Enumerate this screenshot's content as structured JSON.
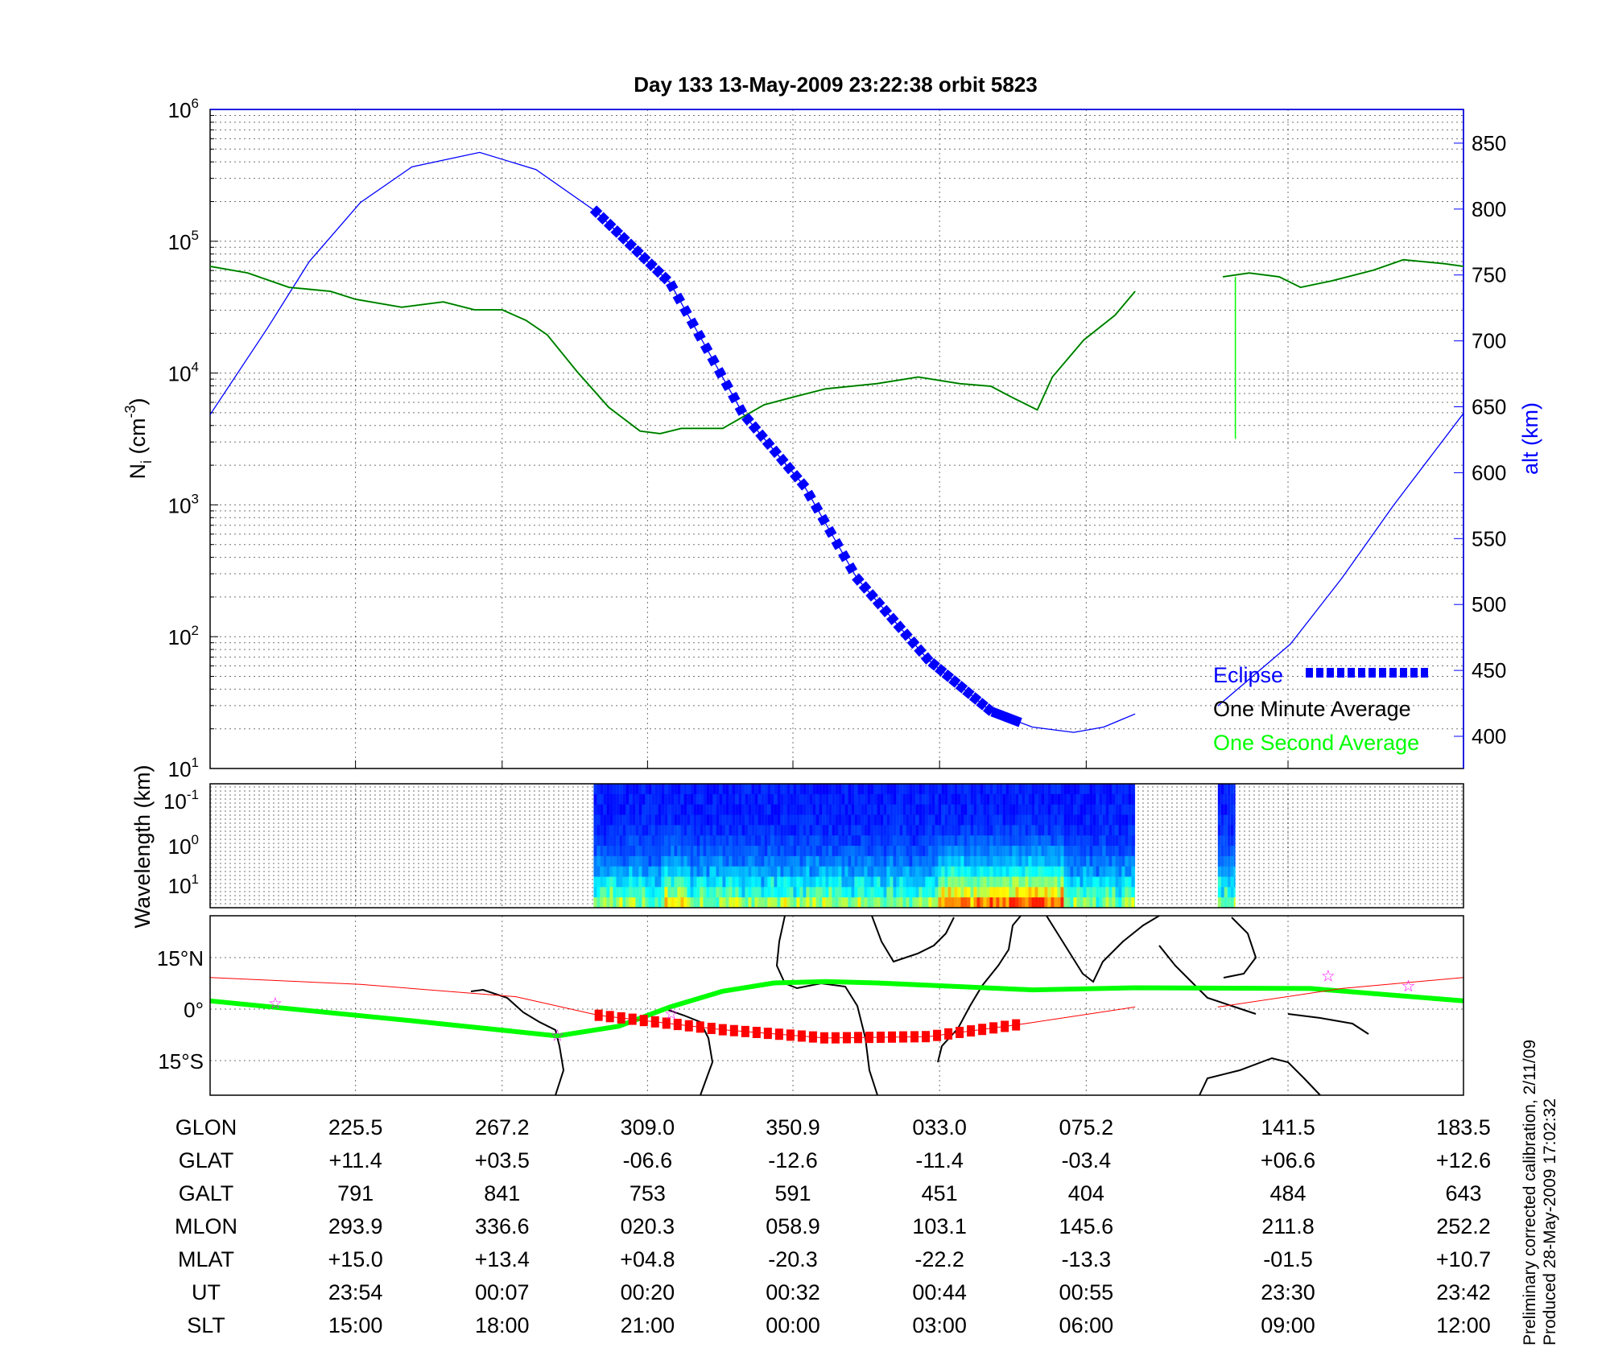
{
  "chart_data": [
    {
      "type": "line",
      "title": "Day 133  13-May-2009 23:22:38   orbit 5823",
      "xlabel": "",
      "x_units": "percent of plotted orbit segment",
      "ylabel": "N",
      "ylabel_sub": "i",
      "ylabel_unit_pre": " (cm",
      "ylabel_unit_sup": "-3",
      "ylabel_unit_post": ")",
      "yscale": "log",
      "ylim": [
        10,
        1000000
      ],
      "yticks": [
        {
          "base": "10",
          "exp": "1"
        },
        {
          "base": "10",
          "exp": "2"
        },
        {
          "base": "10",
          "exp": "3"
        },
        {
          "base": "10",
          "exp": "4"
        },
        {
          "base": "10",
          "exp": "5"
        },
        {
          "base": "10",
          "exp": "6"
        }
      ],
      "y2label": "alt (km)",
      "y2lim": [
        375,
        875
      ],
      "y2ticks": [
        "400",
        "450",
        "500",
        "550",
        "600",
        "650",
        "700",
        "750",
        "800",
        "850"
      ],
      "grid": true,
      "legend": {
        "position": "bottom-right",
        "entries": [
          {
            "label": "Eclipse",
            "color": "#0000ff"
          },
          {
            "label": "One Minute Average",
            "color": "#000000"
          },
          {
            "label": "One Second Average",
            "color": "#00ff00"
          }
        ]
      },
      "series": [
        {
          "name": "alt (km)",
          "axis": "right",
          "color": "#0000ff",
          "segments": [
            {
              "x": [
                0,
                4.6,
                7.9,
                12.0,
                16.1,
                21.5,
                26.0,
                30.8,
                36.7,
                42.5,
                47.4,
                51.6,
                57.3,
                62.3,
                65.6,
                68.9,
                71.3,
                73.8
              ],
              "y": [
                644,
                710,
                760,
                805,
                832,
                843,
                830,
                798,
                744,
                645,
                590,
                520,
                458,
                419,
                407,
                403,
                407,
                417
              ]
            },
            {
              "x": [
                80.4,
                86.2,
                90.3,
                94.4,
                100
              ],
              "y": [
                423,
                470,
                520,
                575,
                645
              ]
            }
          ]
        },
        {
          "name": "Eclipse",
          "axis": "right",
          "color": "#0000ff",
          "style": "thick-dashed",
          "x_range": [
            30.8,
            64.7
          ]
        },
        {
          "name": "One Minute Average",
          "axis": "left",
          "color": "#006400",
          "segments": [
            {
              "x": [
                0,
                3.0,
                6.3,
                9.6,
                11.6,
                15.3,
                18.6,
                21.1,
                23.3,
                25.2,
                26.9,
                29.3,
                31.8,
                34.3,
                35.9,
                37.6,
                40.9,
                44.2,
                46.6,
                49.1,
                53.2,
                56.5,
                59.8,
                62.3,
                63.9,
                66.0,
                67.2,
                69.7,
                72.2,
                73.8
              ],
              "y": [
                64500,
                57500,
                44700,
                41700,
                36300,
                31600,
                34700,
                30200,
                30200,
                25100,
                19500,
                10200,
                5500,
                3630,
                3470,
                3800,
                3800,
                5750,
                6610,
                7590,
                8320,
                9330,
                8320,
                7940,
                6610,
                5250,
                9330,
                17800,
                27500,
                41700
              ]
            },
            {
              "x": [
                80.8,
                82.9,
                85.3,
                87.0,
                89.5,
                92.8,
                95.2,
                98.5,
                100
              ],
              "y": [
                53700,
                57500,
                53700,
                44700,
                50100,
                60300,
                72400,
                67600,
                64500
              ]
            }
          ]
        },
        {
          "name": "One Second Average",
          "axis": "left",
          "color": "#00ff00",
          "spike": {
            "x": 81.8,
            "y_from": 53700,
            "y_to": 3160
          }
        }
      ]
    },
    {
      "type": "heatmap",
      "ylabel": "Wavelength (km)",
      "yticks": [
        {
          "base": "10",
          "exp": "-1"
        },
        {
          "base": "10",
          "exp": "0"
        },
        {
          "base": "10",
          "exp": "1"
        }
      ],
      "data_x_ranges": [
        [
          30.6,
          73.8
        ],
        [
          80.4,
          81.8
        ]
      ],
      "colormap": "jet"
    },
    {
      "type": "line",
      "yticks": [
        "15°N",
        "0°",
        "15°S"
      ],
      "ylim": [
        -25,
        27
      ],
      "series": [
        {
          "name": "ground track",
          "color": "#00ff00",
          "x": [
            0,
            16.1,
            27.7,
            32.6,
            36.7,
            40.9,
            45.0,
            49.1,
            53.2,
            65.6,
            73.8,
            87.8,
            100
          ],
          "y": [
            2.4,
            -3.4,
            -7.8,
            -5.0,
            0.6,
            5.2,
            7.6,
            8.0,
            7.6,
            5.6,
            6.2,
            6.0,
            2.4
          ]
        },
        {
          "name": "conjugate track",
          "color": "#ff0000",
          "segments": [
            {
              "x": [
                0,
                12.0,
                24.4,
                31.0,
                40.9,
                49.1,
                57.3,
                64.7,
                73.8
              ],
              "y": [
                9.2,
                7.2,
                3.6,
                -1.8,
                -6.0,
                -8.4,
                -8.0,
                -4.4,
                0.6
              ]
            },
            {
              "x": [
                80.4,
                90.3,
                100
              ],
              "y": [
                0.6,
                6.0,
                9.2
              ]
            }
          ]
        },
        {
          "name": "eclipse (conjugate)",
          "color": "#ff0000",
          "x_range": [
            31.0,
            64.7
          ]
        },
        {
          "name": "stars",
          "color": "#ff00ff",
          "x": [
            5.2,
            27.7,
            36.8,
            89.2,
            95.6
          ],
          "y": [
            2.0,
            -7.4,
            -1.0,
            10.0,
            7.0
          ]
        }
      ]
    }
  ],
  "table": {
    "rows": [
      {
        "label": "GLON",
        "values": [
          "225.5",
          "267.2",
          "309.0",
          "350.9",
          "033.0",
          "075.2",
          "141.5",
          "183.5"
        ]
      },
      {
        "label": "GLAT",
        "values": [
          "+11.4",
          "+03.5",
          "-06.6",
          "-12.6",
          "-11.4",
          "-03.4",
          "+06.6",
          "+12.6"
        ]
      },
      {
        "label": "GALT",
        "values": [
          "791",
          "841",
          "753",
          "591",
          "451",
          "404",
          "484",
          "643"
        ]
      },
      {
        "label": "MLON",
        "values": [
          "293.9",
          "336.6",
          "020.3",
          "058.9",
          "103.1",
          "145.6",
          "211.8",
          "252.2"
        ]
      },
      {
        "label": "MLAT",
        "values": [
          "+15.0",
          "+13.4",
          "+04.8",
          "-20.3",
          "-22.2",
          "-13.3",
          "-01.5",
          "+10.7"
        ]
      },
      {
        "label": "UT",
        "values": [
          "23:54",
          "00:07",
          "00:20",
          "00:32",
          "00:44",
          "00:55",
          "23:30",
          "23:42"
        ]
      },
      {
        "label": "SLT",
        "values": [
          "15:00",
          "18:00",
          "21:00",
          "00:00",
          "03:00",
          "06:00",
          "09:00",
          "12:00"
        ]
      }
    ]
  },
  "footer": {
    "line1": "Preliminary corrected calibration, 2/11/09",
    "line2": "Produced 28-May-2009 17:02:32"
  }
}
